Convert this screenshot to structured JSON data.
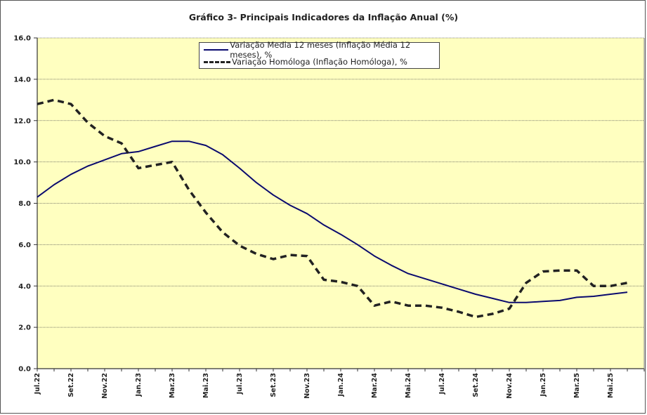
{
  "chart_data": {
    "type": "line",
    "title": "Gráfico 3- Principais Indicadores da Inflação Anual (%)",
    "xlabel": "",
    "ylabel": "",
    "ylim": [
      0,
      16
    ],
    "yticks": [
      "0.0",
      "2.0",
      "4.0",
      "6.0",
      "8.0",
      "10.0",
      "12.0",
      "14.0",
      "16.0"
    ],
    "ytick_values": [
      0,
      2,
      4,
      6,
      8,
      10,
      12,
      14,
      16
    ],
    "grid": true,
    "legend_position": "top-center",
    "background_color": "#ffffc0",
    "categories": [
      "Jul.22",
      "Ago.22",
      "Set.22",
      "Out.22",
      "Nov.22",
      "Dez.22",
      "Jan.23",
      "Fev.23",
      "Mar.23",
      "Abr.23",
      "Mai.23",
      "Jun.23",
      "Jul.23",
      "Ago.23",
      "Set.23",
      "Out.23",
      "Nov.23",
      "Dez.23",
      "Jan.24",
      "Fev.24",
      "Mar.24",
      "Abr.24",
      "Mai.24",
      "Jun.24",
      "Jul.24",
      "Ago.24",
      "Set.24",
      "Out.24",
      "Nov.24",
      "Dez.24",
      "Jan.25",
      "Fev.25",
      "Mar.25",
      "Abr.25",
      "Mai.25",
      "Jun.25"
    ],
    "xtick_labels": [
      "Jul.22",
      "Set.22",
      "Nov.22",
      "Jan.23",
      "Mar.23",
      "Mai.23",
      "Jul.23",
      "Set.23",
      "Nov.23",
      "Jan.24",
      "Mar.24",
      "Mai.24",
      "Jul.24",
      "Set.24",
      "Nov.24",
      "Jan.25",
      "Mar.25",
      "Mai.25"
    ],
    "series": [
      {
        "name": "Variação Media 12 meses (Inflação Média 12 meses), %",
        "style": "solid",
        "color": "#0a0a6e",
        "values": [
          8.3,
          8.9,
          9.4,
          9.8,
          10.1,
          10.4,
          10.5,
          10.75,
          11.0,
          11.0,
          10.8,
          10.35,
          9.7,
          9.0,
          8.4,
          7.9,
          7.5,
          6.95,
          6.5,
          6.0,
          5.45,
          5.0,
          4.6,
          4.35,
          4.1,
          3.85,
          3.6,
          3.4,
          3.2,
          3.2,
          3.25,
          3.3,
          3.45,
          3.5,
          3.6,
          3.7
        ]
      },
      {
        "name": "Variação Homóloga (Inflação Homóloga), %",
        "style": "dashed",
        "color": "#222222",
        "values": [
          12.8,
          13.0,
          12.8,
          11.9,
          11.25,
          10.9,
          9.7,
          9.85,
          10.0,
          8.65,
          7.55,
          6.6,
          5.95,
          5.55,
          5.3,
          5.5,
          5.45,
          4.3,
          4.2,
          4.0,
          3.05,
          3.25,
          3.05,
          3.05,
          2.95,
          2.75,
          2.5,
          2.65,
          2.9,
          4.15,
          4.7,
          4.75,
          4.75,
          4.0,
          4.0,
          4.15
        ]
      }
    ]
  }
}
